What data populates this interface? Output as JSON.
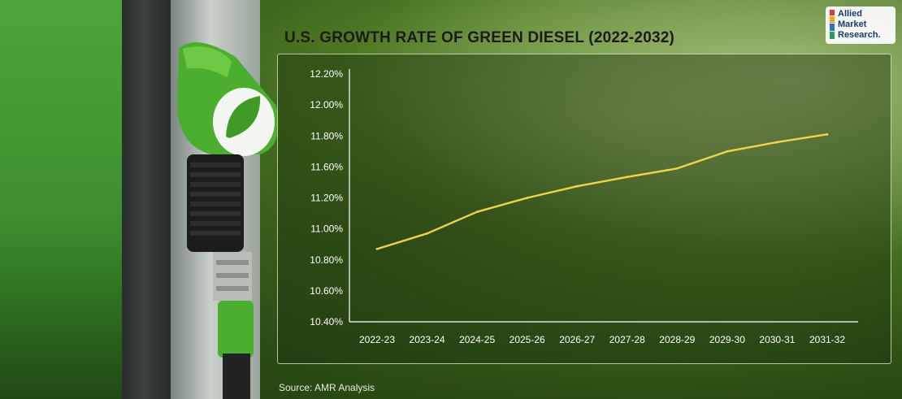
{
  "title": "U.S. GROWTH RATE OF GREEN DIESEL (2022-2032)",
  "source": "Source: AMR Analysis",
  "logo": {
    "line1": "Allied",
    "line2": "Market",
    "line3": "Research."
  },
  "colors": {
    "line": "#f2d34a",
    "axis": "#ffffff",
    "text": "#ffffff",
    "title": "#1b1b1b",
    "panel_border": "#e6f0d2",
    "brand_green": "#3c8f2c"
  },
  "chart_data": {
    "type": "line",
    "title": "U.S. GROWTH RATE OF GREEN DIESEL (2022-2032)",
    "xlabel": "",
    "ylabel": "",
    "categories": [
      "2022-23",
      "2023-24",
      "2024-25",
      "2025-26",
      "2026-27",
      "2027-28",
      "2028-29",
      "2029-30",
      "2030-31",
      "2031-32"
    ],
    "y_tick_labels": [
      "10.40%",
      "10.60%",
      "10.80%",
      "11.00%",
      "11.20%",
      "11.60%",
      "11.80%",
      "12.00%",
      "12.20%"
    ],
    "series": [
      {
        "values": [
          10.87,
          10.97,
          11.11,
          11.2,
          11.35,
          11.47,
          11.58,
          11.7,
          11.76,
          11.81
        ]
      }
    ],
    "grid": false,
    "legend": "none"
  }
}
